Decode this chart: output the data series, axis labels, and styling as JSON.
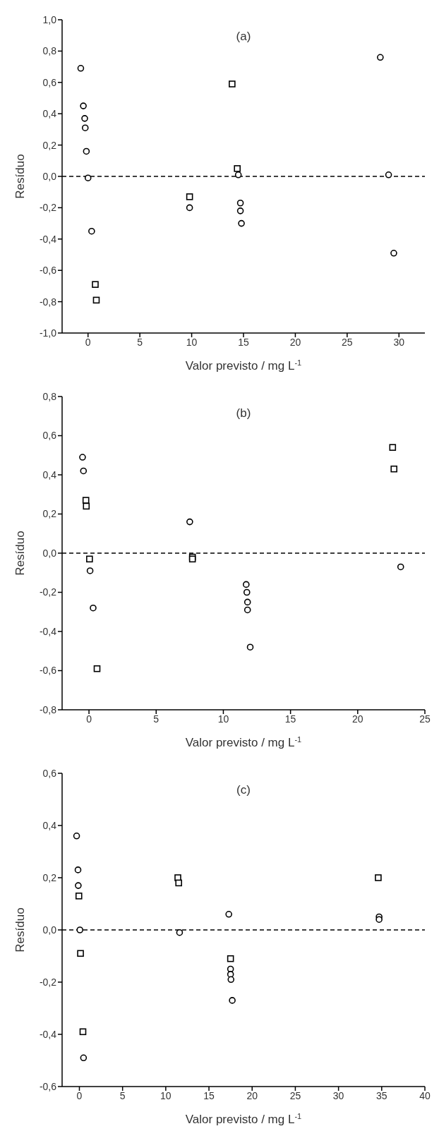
{
  "chart_data": [
    {
      "type": "scatter",
      "title": "(a)",
      "xlabel": "Valor previsto / mg L$^{-1}$",
      "ylabel": "Resíduo",
      "xlim": [
        -2.5,
        32.5
      ],
      "xticks": [
        0,
        5,
        10,
        15,
        20,
        25,
        30
      ],
      "ylim": [
        -1,
        1
      ],
      "yticks": [
        {
          "value": -1,
          "label": "-1,0"
        },
        {
          "value": -0.8,
          "label": "-0,8"
        },
        {
          "value": -0.6,
          "label": "-0,6"
        },
        {
          "value": -0.4,
          "label": "-0,4"
        },
        {
          "value": -0.2,
          "label": "-0,2"
        },
        {
          "value": 0,
          "label": "0,0"
        },
        {
          "value": 0.2,
          "label": "0,2"
        },
        {
          "value": 0.4,
          "label": "0,4"
        },
        {
          "value": 0.6,
          "label": "0,6"
        },
        {
          "value": 0.8,
          "label": "0,8"
        },
        {
          "value": 1,
          "label": "1,0"
        }
      ],
      "grid": false,
      "legend": false,
      "ref_lines": [
        {
          "axis": "y",
          "value": 0,
          "line_style": "dashed",
          "color": "#000000"
        }
      ],
      "series": [
        {
          "color": "#000000",
          "marker": "circle",
          "x": [
            -0.7,
            -0.45,
            -0.32,
            -0.27,
            -0.16,
            0,
            0.35,
            9.8,
            14.5,
            14.7,
            14.7,
            14.8,
            28.2,
            29.0,
            29.5
          ],
          "values": [
            0.69,
            0.45,
            0.37,
            0.31,
            0.16,
            -0.01,
            -0.35,
            -0.2,
            0.01,
            -0.17,
            -0.22,
            -0.3,
            0.76,
            0.01,
            -0.49
          ]
        },
        {
          "color": "#000000",
          "marker": "square",
          "x": [
            0.7,
            0.8,
            9.8,
            13.9,
            14.4
          ],
          "values": [
            -0.69,
            -0.79,
            -0.13,
            0.59,
            0.05
          ]
        }
      ]
    },
    {
      "type": "scatter",
      "title": "(b)",
      "xlabel": "Valor previsto / mg L$^{-1}$",
      "ylabel": "Resíduo",
      "xlim": [
        -2,
        25
      ],
      "xticks": [
        0,
        5,
        10,
        15,
        20,
        25
      ],
      "ylim": [
        -0.8,
        0.8
      ],
      "yticks": [
        {
          "value": -0.8,
          "label": "-0,8"
        },
        {
          "value": -0.6,
          "label": "-0,6"
        },
        {
          "value": -0.4,
          "label": "-0,4"
        },
        {
          "value": -0.2,
          "label": "-0,2"
        },
        {
          "value": 0,
          "label": "0,0"
        },
        {
          "value": 0.2,
          "label": "0,2"
        },
        {
          "value": 0.4,
          "label": "0,4"
        },
        {
          "value": 0.6,
          "label": "0,6"
        },
        {
          "value": 0.8,
          "label": "0,8"
        }
      ],
      "grid": false,
      "legend": false,
      "ref_lines": [
        {
          "axis": "y",
          "value": 0,
          "line_style": "dashed",
          "color": "#000000"
        }
      ],
      "series": [
        {
          "color": "#000000",
          "marker": "circle",
          "x": [
            -0.48,
            -0.41,
            0.08,
            0.31,
            7.5,
            11.7,
            11.75,
            11.8,
            11.8,
            12.0,
            23.2
          ],
          "values": [
            0.49,
            0.42,
            -0.09,
            -0.28,
            0.16,
            -0.16,
            -0.2,
            -0.25,
            -0.29,
            -0.48,
            -0.07
          ]
        },
        {
          "color": "#000000",
          "marker": "square",
          "x": [
            -0.23,
            -0.2,
            0.04,
            0.6,
            7.7,
            7.7,
            22.6,
            22.7
          ],
          "values": [
            0.27,
            0.24,
            -0.03,
            -0.59,
            -0.02,
            -0.03,
            0.54,
            0.43
          ]
        }
      ]
    },
    {
      "type": "scatter",
      "title": "(c)",
      "xlabel": "Valor previsto / mg L$^{-1}$",
      "ylabel": "Resíduo",
      "xlim": [
        -2,
        40
      ],
      "xticks": [
        0,
        5,
        10,
        15,
        20,
        25,
        30,
        35,
        40
      ],
      "ylim": [
        -0.6,
        0.6
      ],
      "yticks": [
        {
          "value": -0.6,
          "label": "-0,6"
        },
        {
          "value": -0.4,
          "label": "-0,4"
        },
        {
          "value": -0.2,
          "label": "-0,2"
        },
        {
          "value": 0,
          "label": "0,0"
        },
        {
          "value": 0.2,
          "label": "0,2"
        },
        {
          "value": 0.4,
          "label": "0,4"
        },
        {
          "value": 0.6,
          "label": "0,6"
        }
      ],
      "grid": false,
      "legend": false,
      "ref_lines": [
        {
          "axis": "y",
          "value": 0,
          "line_style": "dashed",
          "color": "#000000"
        }
      ],
      "series": [
        {
          "color": "#000000",
          "marker": "circle",
          "x": [
            -0.32,
            -0.16,
            -0.13,
            0.06,
            0.48,
            11.6,
            17.3,
            17.5,
            17.5,
            17.55,
            17.7,
            34.7,
            34.7
          ],
          "values": [
            0.36,
            0.23,
            0.17,
            0,
            -0.49,
            -0.01,
            0.06,
            -0.15,
            -0.17,
            -0.19,
            -0.27,
            0.05,
            0.04
          ]
        },
        {
          "color": "#000000",
          "marker": "square",
          "x": [
            -0.06,
            0.13,
            0.41,
            11.4,
            11.5,
            17.5,
            34.6
          ],
          "values": [
            0.13,
            -0.09,
            -0.39,
            0.2,
            0.18,
            -0.11,
            0.2
          ]
        }
      ]
    }
  ]
}
